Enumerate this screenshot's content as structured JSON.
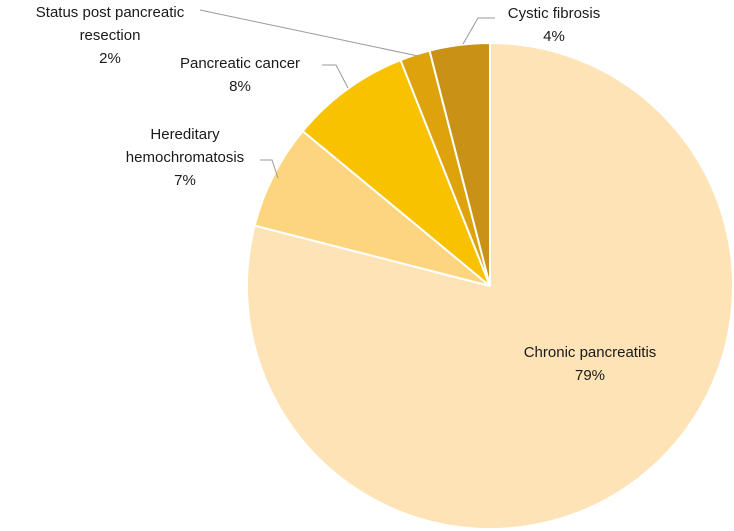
{
  "chart_data": {
    "type": "pie",
    "title": "",
    "start_angle_deg": 0,
    "direction": "clockwise",
    "slices": [
      {
        "name": "Chronic pancreatitis",
        "label_lines": [
          "Chronic pancreatitis"
        ],
        "value": 79,
        "percent_label": "79%",
        "color": "#fde3b5"
      },
      {
        "name": "Hereditary hemochromatosis",
        "label_lines": [
          "Hereditary",
          "hemochromatosis"
        ],
        "value": 7,
        "percent_label": "7%",
        "color": "#fdd57f"
      },
      {
        "name": "Pancreatic cancer",
        "label_lines": [
          "Pancreatic cancer"
        ],
        "value": 8,
        "percent_label": "8%",
        "color": "#f8c200"
      },
      {
        "name": "Status post pancreatic resection",
        "label_lines": [
          "Status post pancreatic",
          "resection"
        ],
        "value": 2,
        "percent_label": "2%",
        "color": "#dea20a"
      },
      {
        "name": "Cystic fibrosis",
        "label_lines": [
          "Cystic fibrosis"
        ],
        "value": 4,
        "percent_label": "4%",
        "color": "#c99116"
      }
    ]
  }
}
